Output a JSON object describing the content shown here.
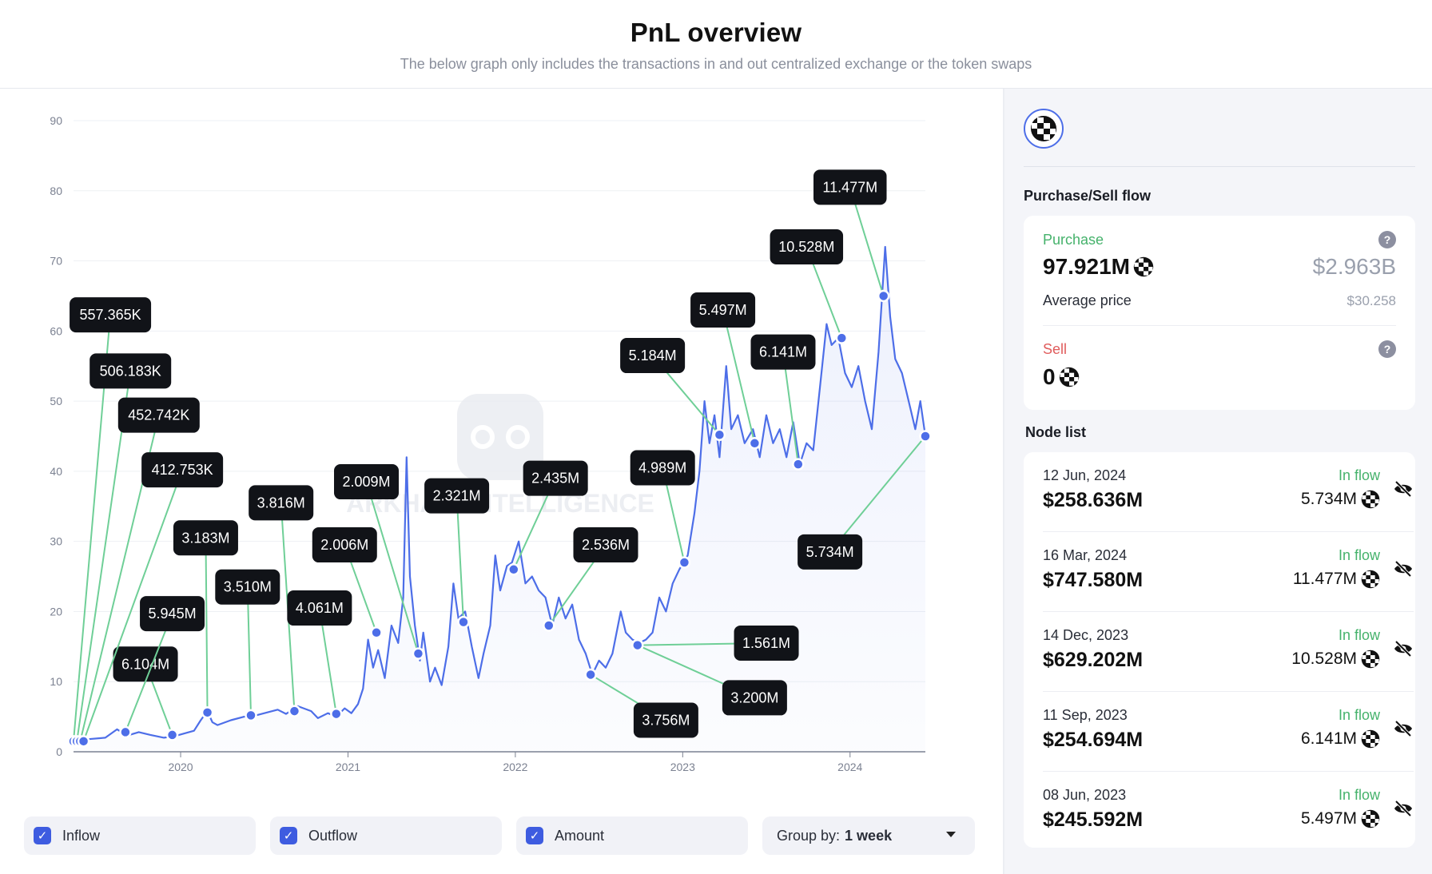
{
  "header": {
    "title": "PnL overview",
    "subtitle": "The below graph only includes the transactions in and out centralized exchange or the token swaps"
  },
  "chart_data": {
    "type": "area",
    "title": "PnL overview",
    "xlabel": "",
    "ylabel": "",
    "ylim": [
      0,
      90
    ],
    "yticks": [
      "0",
      "10",
      "20",
      "30",
      "40",
      "50",
      "60",
      "70",
      "80",
      "90"
    ],
    "xticks": [
      {
        "label": "2020",
        "x": 2020.0
      },
      {
        "label": "2021",
        "x": 2021.0
      },
      {
        "label": "2022",
        "x": 2022.0
      },
      {
        "label": "2023",
        "x": 2023.0
      },
      {
        "label": "2024",
        "x": 2024.0
      }
    ],
    "xlim": [
      2019.36,
      2024.45
    ],
    "grid": true,
    "watermark": "ARKHAM INTELLIGENCE",
    "series_color": "#4d6ee8",
    "annotation_color": "#6fcf97",
    "price": [
      [
        2019.36,
        1.5
      ],
      [
        2019.45,
        1.8
      ],
      [
        2019.55,
        2.0
      ],
      [
        2019.62,
        3.2
      ],
      [
        2019.68,
        2.3
      ],
      [
        2019.75,
        2.8
      ],
      [
        2019.82,
        2.4
      ],
      [
        2019.9,
        2.0
      ],
      [
        2019.96,
        2.2
      ],
      [
        2020.02,
        2.6
      ],
      [
        2020.08,
        3.0
      ],
      [
        2020.12,
        4.5
      ],
      [
        2020.16,
        5.8
      ],
      [
        2020.19,
        4.2
      ],
      [
        2020.22,
        3.8
      ],
      [
        2020.3,
        4.5
      ],
      [
        2020.38,
        5.0
      ],
      [
        2020.45,
        5.2
      ],
      [
        2020.5,
        5.5
      ],
      [
        2020.58,
        6.0
      ],
      [
        2020.63,
        5.4
      ],
      [
        2020.7,
        6.5
      ],
      [
        2020.78,
        5.8
      ],
      [
        2020.82,
        4.8
      ],
      [
        2020.88,
        5.5
      ],
      [
        2020.93,
        5.0
      ],
      [
        2020.98,
        6.2
      ],
      [
        2021.02,
        5.5
      ],
      [
        2021.06,
        6.8
      ],
      [
        2021.09,
        9.0
      ],
      [
        2021.12,
        16.0
      ],
      [
        2021.15,
        12.0
      ],
      [
        2021.18,
        14.5
      ],
      [
        2021.22,
        10.5
      ],
      [
        2021.26,
        18.0
      ],
      [
        2021.3,
        15.5
      ],
      [
        2021.33,
        22.0
      ],
      [
        2021.35,
        42.0
      ],
      [
        2021.37,
        25.0
      ],
      [
        2021.4,
        18.0
      ],
      [
        2021.43,
        13.0
      ],
      [
        2021.45,
        17.0
      ],
      [
        2021.49,
        10.0
      ],
      [
        2021.52,
        12.0
      ],
      [
        2021.56,
        9.5
      ],
      [
        2021.6,
        15.0
      ],
      [
        2021.63,
        24.0
      ],
      [
        2021.66,
        19.0
      ],
      [
        2021.7,
        20.0
      ],
      [
        2021.74,
        15.0
      ],
      [
        2021.78,
        10.5
      ],
      [
        2021.81,
        14.0
      ],
      [
        2021.85,
        18.0
      ],
      [
        2021.88,
        28.0
      ],
      [
        2021.91,
        23.0
      ],
      [
        2021.95,
        26.5
      ],
      [
        2021.98,
        27.0
      ],
      [
        2022.02,
        30.0
      ],
      [
        2022.06,
        24.0
      ],
      [
        2022.1,
        25.0
      ],
      [
        2022.14,
        23.0
      ],
      [
        2022.18,
        22.0
      ],
      [
        2022.22,
        18.0
      ],
      [
        2022.26,
        22.0
      ],
      [
        2022.3,
        19.0
      ],
      [
        2022.34,
        21.0
      ],
      [
        2022.38,
        16.0
      ],
      [
        2022.42,
        14.0
      ],
      [
        2022.46,
        11.0
      ],
      [
        2022.5,
        13.0
      ],
      [
        2022.54,
        12.0
      ],
      [
        2022.58,
        14.0
      ],
      [
        2022.63,
        20.0
      ],
      [
        2022.66,
        17.0
      ],
      [
        2022.7,
        16.0
      ],
      [
        2022.74,
        15.5
      ],
      [
        2022.78,
        16.0
      ],
      [
        2022.82,
        17.0
      ],
      [
        2022.86,
        22.0
      ],
      [
        2022.9,
        20.0
      ],
      [
        2022.94,
        24.0
      ],
      [
        2022.98,
        26.0
      ],
      [
        2023.03,
        28.0
      ],
      [
        2023.07,
        34.0
      ],
      [
        2023.1,
        40.0
      ],
      [
        2023.13,
        50.0
      ],
      [
        2023.16,
        44.0
      ],
      [
        2023.19,
        48.0
      ],
      [
        2023.22,
        42.0
      ],
      [
        2023.26,
        55.0
      ],
      [
        2023.29,
        46.0
      ],
      [
        2023.33,
        48.0
      ],
      [
        2023.37,
        44.0
      ],
      [
        2023.42,
        46.0
      ],
      [
        2023.46,
        42.0
      ],
      [
        2023.5,
        48.0
      ],
      [
        2023.54,
        44.0
      ],
      [
        2023.58,
        46.0
      ],
      [
        2023.62,
        42.0
      ],
      [
        2023.66,
        47.0
      ],
      [
        2023.7,
        41.0
      ],
      [
        2023.74,
        44.0
      ],
      [
        2023.78,
        43.0
      ],
      [
        2023.82,
        52.0
      ],
      [
        2023.86,
        61.0
      ],
      [
        2023.89,
        58.0
      ],
      [
        2023.93,
        59.0
      ],
      [
        2023.97,
        54.0
      ],
      [
        2024.01,
        52.0
      ],
      [
        2024.05,
        55.0
      ],
      [
        2024.09,
        50.0
      ],
      [
        2024.13,
        46.0
      ],
      [
        2024.17,
        57.0
      ],
      [
        2024.21,
        72.0
      ],
      [
        2024.24,
        62.0
      ],
      [
        2024.27,
        56.0
      ],
      [
        2024.31,
        54.0
      ],
      [
        2024.35,
        50.0
      ],
      [
        2024.39,
        46.0
      ],
      [
        2024.42,
        50.0
      ],
      [
        2024.45,
        45.0
      ]
    ],
    "nodes": [
      {
        "label": "6.104M",
        "x": 2019.95,
        "y": 2.4,
        "box_x": 2019.79,
        "box_y": 12.5
      },
      {
        "label": "5.945M",
        "x": 2019.67,
        "y": 2.8,
        "box_x": 2019.95,
        "box_y": 19.7
      },
      {
        "label": "3.183M",
        "x": 2020.16,
        "y": 5.6,
        "box_x": 2020.15,
        "box_y": 30.5
      },
      {
        "label": "3.510M",
        "x": 2020.42,
        "y": 5.2,
        "box_x": 2020.4,
        "box_y": 23.5
      },
      {
        "label": "3.816M",
        "x": 2020.68,
        "y": 5.8,
        "box_x": 2020.6,
        "box_y": 35.5
      },
      {
        "label": "4.061M",
        "x": 2020.93,
        "y": 5.4,
        "box_x": 2020.83,
        "box_y": 20.5
      },
      {
        "label": "2.006M",
        "x": 2021.17,
        "y": 17.0,
        "box_x": 2020.98,
        "box_y": 29.5
      },
      {
        "label": "2.009M",
        "x": 2021.42,
        "y": 14.0,
        "box_x": 2021.11,
        "box_y": 38.5
      },
      {
        "label": "2.321M",
        "x": 2021.69,
        "y": 18.5,
        "box_x": 2021.65,
        "box_y": 36.5
      },
      {
        "label": "2.435M",
        "x": 2021.99,
        "y": 26.0,
        "box_x": 2022.24,
        "box_y": 39.0
      },
      {
        "label": "2.536M",
        "x": 2022.2,
        "y": 18.0,
        "box_x": 2022.54,
        "box_y": 29.5
      },
      {
        "label": "3.756M",
        "x": 2022.45,
        "y": 11.0,
        "box_x": 2022.9,
        "box_y": 4.5
      },
      {
        "label": "3.200M",
        "x": 2022.73,
        "y": 15.2,
        "box_x": 2023.43,
        "box_y": 7.7
      },
      {
        "label": "1.561M",
        "x": 2022.73,
        "y": 15.2,
        "box_x": 2023.5,
        "box_y": 15.5
      },
      {
        "label": "4.989M",
        "x": 2023.01,
        "y": 27.0,
        "box_x": 2022.88,
        "box_y": 40.5
      },
      {
        "label": "5.184M",
        "x": 2023.22,
        "y": 45.2,
        "box_x": 2022.82,
        "box_y": 56.5
      },
      {
        "label": "5.497M",
        "x": 2023.43,
        "y": 44.0,
        "box_x": 2023.24,
        "box_y": 63.0
      },
      {
        "label": "6.141M",
        "x": 2023.69,
        "y": 41.0,
        "box_x": 2023.6,
        "box_y": 57.0
      },
      {
        "label": "10.528M",
        "x": 2023.95,
        "y": 59.0,
        "box_x": 2023.74,
        "box_y": 72.0
      },
      {
        "label": "11.477M",
        "x": 2024.2,
        "y": 65.0,
        "box_x": 2024.0,
        "box_y": 80.5
      },
      {
        "label": "5.734M",
        "x": 2024.45,
        "y": 45.0,
        "box_x": 2023.88,
        "box_y": 28.5
      },
      {
        "label": "557.365K",
        "x": 2019.36,
        "y": 1.5,
        "box_x": 2019.58,
        "box_y": 62.3
      },
      {
        "label": "506.183K",
        "x": 2019.38,
        "y": 1.5,
        "box_x": 2019.7,
        "box_y": 54.3
      },
      {
        "label": "452.742K",
        "x": 2019.4,
        "y": 1.5,
        "box_x": 2019.87,
        "box_y": 48.0
      },
      {
        "label": "412.753K",
        "x": 2019.42,
        "y": 1.5,
        "box_x": 2020.01,
        "box_y": 40.2
      }
    ]
  },
  "controls": {
    "inflow_label": "Inflow",
    "outflow_label": "Outflow",
    "amount_label": "Amount",
    "group_label": "Group by:",
    "group_value": "1 week"
  },
  "sidebar": {
    "purchase_sell_title": "Purchase/Sell flow",
    "purchase": {
      "label": "Purchase",
      "amount": "97.921M",
      "usd": "$2.963B",
      "avg_label": "Average price",
      "avg_value": "$30.258"
    },
    "sell": {
      "label": "Sell",
      "amount": "0"
    },
    "node_list_title": "Node list",
    "nodes": [
      {
        "date": "12 Jun, 2024",
        "usd": "$258.636M",
        "flow": "In flow",
        "amount": "5.734M"
      },
      {
        "date": "16 Mar, 2024",
        "usd": "$747.580M",
        "flow": "In flow",
        "amount": "11.477M"
      },
      {
        "date": "14 Dec, 2023",
        "usd": "$629.202M",
        "flow": "In flow",
        "amount": "10.528M"
      },
      {
        "date": "11 Sep, 2023",
        "usd": "$254.694M",
        "flow": "In flow",
        "amount": "6.141M"
      },
      {
        "date": "08 Jun, 2023",
        "usd": "$245.592M",
        "flow": "In flow",
        "amount": "5.497M"
      }
    ]
  }
}
